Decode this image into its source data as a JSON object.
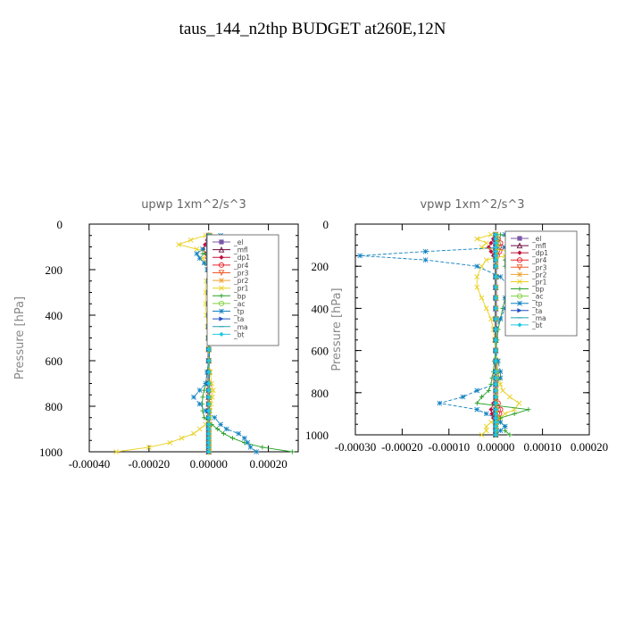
{
  "page": {
    "title": "taus_144_n2thp  BUDGET at260E,12N"
  },
  "chart_data": [
    {
      "type": "line",
      "title": "upwp   1xm^2/s^3",
      "ylabel": "Pressure [hPa]",
      "xlim": [
        -0.0004,
        0.0003
      ],
      "ylim": [
        1000,
        0
      ],
      "x_ticks": [
        -0.0004,
        -0.0002,
        0,
        0.0002
      ],
      "x_tick_labels": [
        "-0.00040",
        "-0.00020",
        "0.00000",
        "0.00020"
      ],
      "y_ticks": [
        0,
        200,
        400,
        600,
        800,
        1000
      ],
      "y_tick_labels": [
        "0",
        "200",
        "400",
        "600",
        "800",
        "1000"
      ],
      "legend": "top-right",
      "pressure": [
        50,
        70,
        90,
        110,
        130,
        150,
        170,
        200,
        250,
        300,
        350,
        400,
        450,
        500,
        550,
        600,
        650,
        700,
        730,
        760,
        790,
        820,
        850,
        880,
        900,
        920,
        940,
        960,
        980,
        1000
      ],
      "series": [
        {
          "name": "_el",
          "color": "#7a58a8",
          "values": [
            0,
            0,
            0,
            0,
            0,
            0,
            0,
            0,
            0,
            0,
            0,
            0,
            0,
            0,
            0,
            0,
            0,
            0,
            0,
            0,
            0,
            0,
            0,
            0,
            0,
            0,
            0,
            0,
            0,
            0
          ]
        },
        {
          "name": "_mfl",
          "color": "#6a0a3a",
          "values": [
            0,
            0,
            0,
            0,
            0,
            0,
            0,
            0,
            0,
            0,
            0,
            0,
            0,
            0,
            0,
            0,
            0,
            0,
            0,
            0,
            0,
            0,
            0,
            0,
            0,
            0,
            0,
            0,
            0,
            0
          ]
        },
        {
          "name": "_dp1",
          "color": "#c0103a",
          "values": [
            0,
            -5e-06,
            -1.2e-05,
            -1.8e-05,
            -1e-05,
            -5e-06,
            0,
            0,
            0,
            0,
            0,
            0,
            0,
            0,
            0,
            0,
            0,
            0,
            0,
            0,
            0,
            0,
            0,
            0,
            0,
            0,
            0,
            0,
            0,
            0
          ]
        },
        {
          "name": "_pr4",
          "color": "#e8222c",
          "values": [
            0,
            8e-06,
            1.5e-05,
            1.2e-05,
            6e-06,
            0,
            0,
            0,
            0,
            0,
            0,
            0,
            0,
            0,
            0,
            0,
            0,
            0,
            0,
            0,
            0,
            0,
            0,
            0,
            0,
            0,
            0,
            0,
            0,
            0
          ]
        },
        {
          "name": "_pr3",
          "color": "#f05a28",
          "values": [
            0,
            0,
            0,
            0,
            0,
            0,
            0,
            0,
            0,
            0,
            0,
            0,
            0,
            0,
            0,
            0,
            0,
            0,
            0,
            0,
            0,
            0,
            0,
            0,
            0,
            0,
            0,
            0,
            0,
            0
          ]
        },
        {
          "name": "_pr2",
          "color": "#f0a030",
          "values": [
            0,
            0,
            0,
            0,
            0,
            0,
            0,
            0,
            0,
            0,
            0,
            0,
            0,
            0,
            0,
            0,
            0,
            0,
            0,
            0,
            0,
            0,
            0,
            0,
            0,
            0,
            0,
            0,
            0,
            0
          ]
        },
        {
          "name": "_pr1",
          "color": "#e8d020",
          "values": [
            -1e-05,
            -6e-05,
            -0.0001,
            -4e-05,
            2e-05,
            -2e-05,
            -1e-05,
            0,
            -8e-06,
            -1e-05,
            -1e-05,
            -8e-06,
            -5e-06,
            -3e-06,
            -2e-06,
            0,
            5e-06,
            1e-05,
            1.5e-05,
            1.2e-05,
            8e-06,
            5e-06,
            3e-06,
            -1e-05,
            -3e-05,
            -5e-05,
            -9e-05,
            -0.00013,
            -0.0002,
            -0.00031
          ]
        },
        {
          "name": "_bp",
          "color": "#28a028",
          "values": [
            1e-05,
            8e-05,
            0.00012,
            6e-05,
            -2e-05,
            3e-05,
            2e-05,
            5e-06,
            8e-06,
            1e-05,
            1e-05,
            8e-06,
            5e-06,
            3e-06,
            2e-06,
            0,
            -5e-06,
            -1e-05,
            -1.5e-05,
            -2e-05,
            -2.2e-05,
            -2e-05,
            -1.5e-05,
            1e-05,
            3e-05,
            5e-05,
            8e-05,
            0.00012,
            0.00018,
            0.00028
          ]
        },
        {
          "name": "_ac",
          "color": "#80d040",
          "values": [
            0,
            3e-06,
            5e-06,
            3e-06,
            0,
            0,
            0,
            0,
            0,
            0,
            0,
            0,
            0,
            0,
            0,
            0,
            0,
            0,
            0,
            0,
            0,
            0,
            0,
            0,
            0,
            0,
            0,
            0,
            0,
            0
          ]
        },
        {
          "name": "_tp",
          "color": "#1080c0",
          "values": [
            4e-05,
            0.0001,
            6e-05,
            -2e-05,
            -4e-05,
            -3e-05,
            -1.5e-05,
            -5e-06,
            0,
            2e-06,
            2e-06,
            2e-06,
            0,
            0,
            0,
            0,
            -5e-06,
            -1e-05,
            -3e-05,
            -5e-05,
            -3e-05,
            -1e-05,
            2e-05,
            4e-05,
            6e-05,
            0.0001,
            0.00012,
            0.00013,
            0.00014,
            0.00016
          ]
        },
        {
          "name": "_ta",
          "color": "#2050c0",
          "values": [
            0,
            0,
            0,
            0,
            0,
            0,
            0,
            0,
            0,
            0,
            0,
            0,
            0,
            0,
            0,
            0,
            0,
            0,
            0,
            0,
            0,
            0,
            0,
            0,
            0,
            0,
            0,
            0,
            0,
            0
          ]
        },
        {
          "name": "_ma",
          "color": "#20a0b0",
          "values": [
            0,
            0,
            0,
            0,
            0,
            0,
            0,
            0,
            0,
            0,
            0,
            0,
            0,
            0,
            0,
            0,
            0,
            0,
            0,
            0,
            0,
            0,
            0,
            0,
            0,
            0,
            0,
            0,
            0,
            0
          ]
        },
        {
          "name": "_bt",
          "color": "#20c8e0",
          "values": [
            0,
            0,
            0,
            0,
            0,
            0,
            0,
            0,
            0,
            0,
            0,
            0,
            0,
            0,
            0,
            0,
            0,
            0,
            0,
            0,
            0,
            0,
            0,
            0,
            0,
            0,
            0,
            0,
            0,
            0
          ]
        }
      ]
    },
    {
      "type": "line",
      "title": "vpwp   1xm^2/s^3",
      "ylabel": "Pressure [hPa]",
      "xlim": [
        -0.0003,
        0.0002
      ],
      "ylim": [
        1000,
        0
      ],
      "x_ticks": [
        -0.0003,
        -0.0002,
        -0.0001,
        0,
        0.0001,
        0.0002
      ],
      "x_tick_labels": [
        "-0.00030",
        "-0.00020",
        "-0.00010",
        "0.00000",
        "0.00010",
        "0.00020"
      ],
      "y_ticks": [
        0,
        200,
        400,
        600,
        800,
        1000
      ],
      "y_tick_labels": [
        "0",
        "200",
        "400",
        "600",
        "800",
        "1000"
      ],
      "legend": "top-right",
      "pressure": [
        50,
        70,
        90,
        110,
        130,
        150,
        170,
        200,
        250,
        300,
        350,
        400,
        450,
        500,
        550,
        600,
        650,
        700,
        730,
        760,
        790,
        820,
        850,
        880,
        900,
        920,
        940,
        960,
        980,
        1000
      ],
      "series": [
        {
          "name": "_el",
          "color": "#7a58a8",
          "values": [
            0,
            0,
            0,
            0,
            0,
            0,
            0,
            0,
            0,
            0,
            0,
            0,
            0,
            0,
            0,
            0,
            0,
            0,
            0,
            0,
            0,
            0,
            0,
            0,
            0,
            0,
            0,
            0,
            0,
            0
          ]
        },
        {
          "name": "_mfl",
          "color": "#6a0a3a",
          "values": [
            0,
            0,
            0,
            0,
            0,
            0,
            0,
            0,
            0,
            0,
            0,
            0,
            0,
            0,
            0,
            0,
            0,
            0,
            0,
            0,
            0,
            0,
            0,
            0,
            0,
            0,
            0,
            0,
            0,
            0
          ]
        },
        {
          "name": "_dp1",
          "color": "#c0103a",
          "values": [
            0,
            -5e-06,
            -1e-05,
            -1.5e-05,
            -1e-05,
            -5e-06,
            0,
            0,
            0,
            0,
            0,
            0,
            0,
            0,
            0,
            0,
            0,
            0,
            0,
            0,
            0,
            0,
            -5e-06,
            -1e-05,
            -8e-06,
            -5e-06,
            0,
            0,
            0,
            0
          ]
        },
        {
          "name": "_pr4",
          "color": "#e8222c",
          "values": [
            0,
            5e-06,
            1e-05,
            1.2e-05,
            8e-06,
            3e-06,
            0,
            0,
            0,
            0,
            0,
            0,
            0,
            0,
            0,
            0,
            0,
            0,
            0,
            0,
            0,
            0,
            5e-06,
            1e-05,
            8e-06,
            5e-06,
            0,
            0,
            0,
            0
          ]
        },
        {
          "name": "_pr3",
          "color": "#f05a28",
          "values": [
            0,
            0,
            0,
            0,
            0,
            0,
            0,
            0,
            0,
            0,
            0,
            0,
            0,
            0,
            0,
            0,
            0,
            0,
            0,
            0,
            0,
            0,
            0,
            0,
            0,
            0,
            0,
            0,
            0,
            0
          ]
        },
        {
          "name": "_pr2",
          "color": "#f0a030",
          "values": [
            0,
            0,
            0,
            0,
            0,
            0,
            0,
            0,
            0,
            0,
            0,
            0,
            0,
            0,
            0,
            0,
            0,
            0,
            0,
            0,
            0,
            0,
            0,
            0,
            0,
            0,
            0,
            0,
            0,
            0
          ]
        },
        {
          "name": "_pr1",
          "color": "#e8d020",
          "values": [
            -1e-05,
            -4e-05,
            -2e-05,
            -3e-05,
            3e-05,
            2e-05,
            -2e-05,
            -3e-05,
            -4e-05,
            -4e-05,
            -3e-05,
            -2e-05,
            -1e-05,
            -5e-06,
            -3e-06,
            0,
            3e-06,
            5e-06,
            8e-06,
            1e-05,
            1.5e-05,
            3e-05,
            5e-05,
            4e-05,
            2e-05,
            1e-05,
            -1e-05,
            -2e-05,
            -2e-05,
            -3e-05
          ]
        },
        {
          "name": "_bp",
          "color": "#28a028",
          "values": [
            1e-05,
            4e-05,
            3e-05,
            4e-05,
            0.00012,
            0.0001,
            2e-05,
            2e-05,
            3e-05,
            3e-05,
            2e-05,
            1.5e-05,
            1e-05,
            5e-06,
            3e-06,
            0,
            -3e-06,
            -5e-06,
            -8e-06,
            -1e-05,
            -1.5e-05,
            -3e-05,
            -4e-05,
            7e-05,
            4e-05,
            1e-05,
            1e-05,
            2e-05,
            2e-05,
            3e-05
          ]
        },
        {
          "name": "_ac",
          "color": "#80d040",
          "values": [
            0,
            3e-06,
            5e-06,
            3e-06,
            0,
            0,
            0,
            0,
            0,
            0,
            0,
            0,
            0,
            0,
            0,
            0,
            0,
            0,
            0,
            0,
            0,
            0,
            0,
            0,
            0,
            0,
            0,
            0,
            0,
            0
          ]
        },
        {
          "name": "_tp",
          "color": "#1080c0",
          "values": [
            2e-05,
            5e-05,
            4e-05,
            2e-05,
            -0.00015,
            -0.00029,
            -0.00015,
            -4e-05,
            1e-05,
            3e-05,
            2e-05,
            2e-05,
            1e-05,
            0,
            0,
            0,
            5e-06,
            1e-05,
            1e-05,
            0,
            -4e-05,
            -7e-05,
            -0.00012,
            -4e-05,
            -2e-05,
            0,
            1e-05,
            2e-05,
            1e-05,
            0
          ]
        },
        {
          "name": "_ta",
          "color": "#2050c0",
          "values": [
            0,
            0,
            0,
            0,
            0,
            0,
            0,
            0,
            0,
            0,
            0,
            0,
            0,
            0,
            0,
            0,
            0,
            0,
            0,
            0,
            0,
            0,
            0,
            0,
            0,
            0,
            0,
            0,
            0,
            0
          ]
        },
        {
          "name": "_ma",
          "color": "#20a0b0",
          "values": [
            0,
            0,
            0,
            0,
            0,
            0,
            0,
            0,
            0,
            0,
            0,
            0,
            0,
            0,
            0,
            0,
            0,
            0,
            0,
            0,
            0,
            0,
            0,
            0,
            0,
            0,
            0,
            0,
            0,
            0
          ]
        },
        {
          "name": "_bt",
          "color": "#20c8e0",
          "values": [
            0,
            0,
            0,
            0,
            0,
            0,
            0,
            0,
            0,
            0,
            0,
            0,
            0,
            0,
            0,
            0,
            0,
            0,
            0,
            0,
            0,
            0,
            0,
            0,
            0,
            0,
            0,
            0,
            0,
            0
          ]
        }
      ]
    }
  ]
}
